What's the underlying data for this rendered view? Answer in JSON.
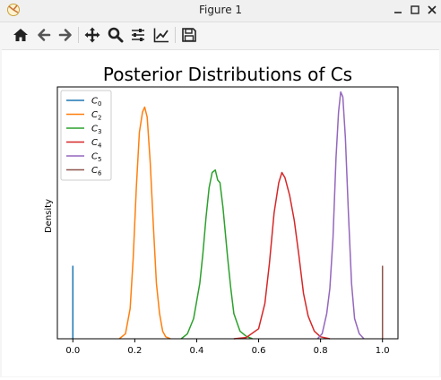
{
  "window": {
    "title": "Figure 1"
  },
  "toolbar": {
    "buttons": [
      {
        "icon": "home-icon",
        "name": "home-button"
      },
      {
        "icon": "back-arrow-icon",
        "name": "back-button"
      },
      {
        "icon": "forward-arrow-icon",
        "name": "forward-button"
      },
      {
        "icon": "pan-move-icon",
        "name": "pan-button"
      },
      {
        "icon": "zoom-magnifier-icon",
        "name": "zoom-button"
      },
      {
        "icon": "subplots-sliders-icon",
        "name": "configure-subplots-button"
      },
      {
        "icon": "edit-axes-chart-icon",
        "name": "edit-axes-button"
      },
      {
        "icon": "save-floppy-icon",
        "name": "save-button"
      }
    ]
  },
  "chart_data": {
    "type": "line",
    "title": "Posterior Distributions of Cs",
    "xlabel": "",
    "ylabel": "Density",
    "xlim": [
      -0.05,
      1.05
    ],
    "ylim": [
      0,
      1.0
    ],
    "xticks": [
      "0.0",
      "0.2",
      "0.4",
      "0.6",
      "0.8",
      "1.0"
    ],
    "xtick_values": [
      0.0,
      0.2,
      0.4,
      0.6,
      0.8,
      1.0
    ],
    "yticks_visible": false,
    "grid": false,
    "legend_position": "top-left",
    "series": [
      {
        "name": "C0",
        "label_base": "C",
        "label_sub": "0",
        "color": "#1f77b4",
        "kind": "vline",
        "x": 0.0,
        "height": 0.29
      },
      {
        "name": "C2",
        "label_base": "C",
        "label_sub": "2",
        "color": "#ff7f0e",
        "kind": "density",
        "x": [
          0.15,
          0.17,
          0.185,
          0.195,
          0.205,
          0.215,
          0.225,
          0.232,
          0.24,
          0.25,
          0.26,
          0.27,
          0.28,
          0.29,
          0.3,
          0.315
        ],
        "y": [
          0.0,
          0.02,
          0.12,
          0.32,
          0.6,
          0.82,
          0.9,
          0.92,
          0.88,
          0.7,
          0.45,
          0.22,
          0.1,
          0.03,
          0.008,
          0.0
        ]
      },
      {
        "name": "C3",
        "label_base": "C",
        "label_sub": "3",
        "color": "#2ca02c",
        "kind": "density",
        "x": [
          0.35,
          0.37,
          0.39,
          0.41,
          0.42,
          0.43,
          0.44,
          0.45,
          0.46,
          0.468,
          0.475,
          0.485,
          0.5,
          0.51,
          0.52,
          0.54,
          0.56,
          0.58
        ],
        "y": [
          0.0,
          0.02,
          0.08,
          0.22,
          0.34,
          0.48,
          0.6,
          0.66,
          0.67,
          0.63,
          0.62,
          0.52,
          0.32,
          0.2,
          0.1,
          0.03,
          0.01,
          0.0
        ]
      },
      {
        "name": "C4",
        "label_base": "C",
        "label_sub": "4",
        "color": "#d62728",
        "kind": "density",
        "x": [
          0.52,
          0.56,
          0.6,
          0.62,
          0.635,
          0.65,
          0.665,
          0.675,
          0.685,
          0.7,
          0.715,
          0.73,
          0.745,
          0.76,
          0.78,
          0.8,
          0.83
        ],
        "y": [
          0.0,
          0.005,
          0.04,
          0.14,
          0.3,
          0.5,
          0.62,
          0.66,
          0.64,
          0.57,
          0.47,
          0.33,
          0.18,
          0.09,
          0.03,
          0.008,
          0.0
        ]
      },
      {
        "name": "C5",
        "label_base": "C",
        "label_sub": "5",
        "color": "#9467bd",
        "kind": "density",
        "x": [
          0.79,
          0.805,
          0.82,
          0.83,
          0.84,
          0.85,
          0.858,
          0.865,
          0.872,
          0.88,
          0.89,
          0.9,
          0.91,
          0.925,
          0.94
        ],
        "y": [
          0.0,
          0.02,
          0.1,
          0.2,
          0.4,
          0.72,
          0.9,
          0.98,
          0.96,
          0.8,
          0.5,
          0.22,
          0.08,
          0.02,
          0.0
        ]
      },
      {
        "name": "C6",
        "label_base": "C",
        "label_sub": "6",
        "color": "#8c564b",
        "kind": "vline",
        "x": 1.0,
        "height": 0.29
      }
    ]
  }
}
